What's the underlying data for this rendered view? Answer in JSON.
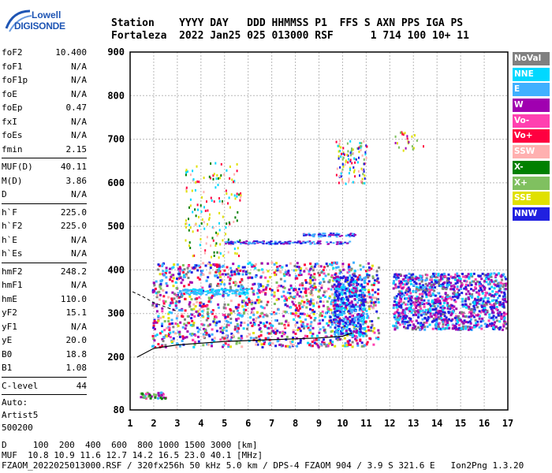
{
  "logo": {
    "brand_top": "Lowell",
    "brand_bottom": "DIGISONDE"
  },
  "header": {
    "line1": "Station    YYYY DAY   DDD HHMMSS P1  FFS S AXN PPS IGA PS",
    "line2": "Fortaleza  2022 Jan25 025 013000 RSF      1 714 100 10+ 11"
  },
  "params": {
    "group1": [
      {
        "name": "foF2",
        "value": "10.400"
      },
      {
        "name": "foF1",
        "value": "N/A"
      },
      {
        "name": "foF1p",
        "value": "N/A"
      },
      {
        "name": "foE",
        "value": "N/A"
      },
      {
        "name": "foEp",
        "value": "0.47"
      },
      {
        "name": "fxI",
        "value": "N/A"
      },
      {
        "name": "foEs",
        "value": "N/A"
      },
      {
        "name": "fmin",
        "value": "2.15"
      }
    ],
    "group2": [
      {
        "name": "MUF(D)",
        "value": "40.11"
      },
      {
        "name": "M(D)",
        "value": "3.86"
      },
      {
        "name": "D",
        "value": "N/A"
      }
    ],
    "group3": [
      {
        "name": "h`F",
        "value": "225.0"
      },
      {
        "name": "h`F2",
        "value": "225.0"
      },
      {
        "name": "h`E",
        "value": "N/A"
      },
      {
        "name": "h`Es",
        "value": "N/A"
      }
    ],
    "group4": [
      {
        "name": "hmF2",
        "value": "248.2"
      },
      {
        "name": "hmF1",
        "value": "N/A"
      },
      {
        "name": "hmE",
        "value": "110.0"
      },
      {
        "name": "yF2",
        "value": "15.1"
      },
      {
        "name": "yF1",
        "value": "N/A"
      },
      {
        "name": "yE",
        "value": "20.0"
      },
      {
        "name": "B0",
        "value": "18.8"
      },
      {
        "name": "B1",
        "value": "1.08"
      }
    ],
    "group5": [
      {
        "name": "C-level",
        "value": "44"
      }
    ],
    "auto": [
      "Auto:",
      "Artist5",
      "500200"
    ]
  },
  "legend": [
    {
      "label": "NoVal",
      "color": "#808080"
    },
    {
      "label": "NNE",
      "color": "#00d8ff"
    },
    {
      "label": "E",
      "color": "#40b0ff"
    },
    {
      "label": "W",
      "color": "#a000b0"
    },
    {
      "label": "Vo-",
      "color": "#ff40b0"
    },
    {
      "label": "Vo+",
      "color": "#ff0040"
    },
    {
      "label": "SSW",
      "color": "#ffb0b0"
    },
    {
      "label": "X-",
      "color": "#008000"
    },
    {
      "label": "X+",
      "color": "#80c060"
    },
    {
      "label": "SSE",
      "color": "#e0e000"
    },
    {
      "label": "NNW",
      "color": "#2020e0"
    }
  ],
  "chart_data": {
    "type": "scatter",
    "title": "",
    "xlabel": "",
    "ylabel": "",
    "xlim": [
      1,
      17
    ],
    "ylim": [
      80,
      900
    ],
    "x_ticks": [
      1,
      2,
      3,
      4,
      5,
      6,
      7,
      8,
      9,
      10,
      11,
      12,
      13,
      14,
      15,
      16,
      17
    ],
    "y_ticks": [
      80,
      200,
      300,
      400,
      500,
      600,
      700,
      800,
      900
    ],
    "grid": true,
    "legend_position": "right",
    "trace_profile": {
      "name": "",
      "x": [
        1.3,
        2.0,
        3.0,
        4.0,
        5.0,
        6.0,
        7.0,
        8.0,
        9.0,
        10.0,
        10.4
      ],
      "y": [
        200,
        220,
        228,
        232,
        236,
        238,
        240,
        242,
        244,
        248,
        255
      ]
    },
    "dashed_trace": {
      "x": [
        1.1,
        1.5,
        2.0,
        2.5,
        3.0
      ],
      "y": [
        350,
        340,
        325,
        315,
        305
      ]
    },
    "dense_band": {
      "x_range": [
        1.9,
        11.5
      ],
      "y_range": [
        225,
        420
      ]
    },
    "dense_band_right": {
      "x_range": [
        12.1,
        16.9
      ],
      "y_range": [
        265,
        395
      ]
    },
    "cluster_low": {
      "x_range": [
        1.4,
        2.5
      ],
      "y_range": [
        108,
        122
      ]
    },
    "cluster_high_left": {
      "x_range": [
        3.3,
        5.7
      ],
      "y_range": [
        430,
        650
      ]
    },
    "cluster_high_mid": {
      "x_range": [
        9.7,
        11.0
      ],
      "y_range": [
        600,
        700
      ]
    },
    "cluster_high_right": {
      "x_range": [
        12.2,
        13.4
      ],
      "y_range": [
        670,
        720
      ]
    },
    "line_465": {
      "x_range": [
        5.0,
        10.3
      ],
      "y": 465
    },
    "line_480": {
      "x_range": [
        8.3,
        10.5
      ],
      "y": 482
    }
  },
  "footer": {
    "line1": "D     100  200  400  600  800 1000 1500 3000 [km]",
    "line2": "MUF  10.8 10.9 11.6 12.7 14.2 16.5 23.0 40.1 [MHz]",
    "line3": "FZAOM_2022025013000.RSF / 320fx256h 50 kHz 5.0 km / DPS-4 FZAOM 904 / 3.9 S 321.6 E   Ion2Png 1.3.20"
  }
}
